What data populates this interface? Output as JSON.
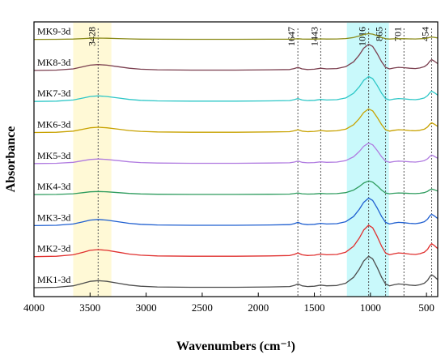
{
  "chart_data": {
    "type": "line",
    "title": "",
    "xlabel": "Wavenumbers (cm⁻¹)",
    "ylabel": "Absorbance",
    "xlim": [
      4000,
      400
    ],
    "x_reversed": true,
    "x_ticks": [
      4000,
      3500,
      3000,
      2500,
      2000,
      1500,
      1000,
      500
    ],
    "y_ticks_shown": false,
    "grid": false,
    "legend": "inline labels at left of each trace",
    "highlight_bands": [
      {
        "from": 3650,
        "to": 3310,
        "color": "#fff9d6"
      },
      {
        "from": 1210,
        "to": 835,
        "color": "#c9f9fb"
      }
    ],
    "peak_markers": [
      {
        "position": 3428,
        "label": "3428"
      },
      {
        "position": 1647,
        "label": "1647"
      },
      {
        "position": 1443,
        "label": "1443"
      },
      {
        "position": 1016,
        "label": "1016"
      },
      {
        "position": 865,
        "label": "865"
      },
      {
        "position": 701,
        "label": "701"
      },
      {
        "position": 454,
        "label": "454"
      }
    ],
    "series": [
      {
        "name": "MK9-3d",
        "color": "#8b8b1a",
        "offset": 8.0,
        "amp": 0.22
      },
      {
        "name": "MK8-3d",
        "color": "#7b3f4f",
        "offset": 7.0,
        "amp": 1.0
      },
      {
        "name": "MK7-3d",
        "color": "#2ec7c7",
        "offset": 6.0,
        "amp": 0.95
      },
      {
        "name": "MK6-3d",
        "color": "#c8a200",
        "offset": 5.0,
        "amp": 0.9
      },
      {
        "name": "MK5-3d",
        "color": "#b07be0",
        "offset": 4.0,
        "amp": 0.78
      },
      {
        "name": "MK4-3d",
        "color": "#2e9c5e",
        "offset": 3.0,
        "amp": 0.52
      },
      {
        "name": "MK3-3d",
        "color": "#1f5fd0",
        "offset": 2.0,
        "amp": 1.05
      },
      {
        "name": "MK2-3d",
        "color": "#e0302f",
        "offset": 1.0,
        "amp": 1.2
      },
      {
        "name": "MK1-3d",
        "color": "#4d4d4d",
        "offset": 0.0,
        "amp": 1.2
      }
    ],
    "spectrum_shape": {
      "x": [
        4000,
        3800,
        3650,
        3560,
        3500,
        3428,
        3350,
        3250,
        3150,
        3050,
        2900,
        2600,
        2200,
        1900,
        1720,
        1680,
        1647,
        1610,
        1560,
        1500,
        1443,
        1390,
        1300,
        1220,
        1150,
        1100,
        1060,
        1016,
        980,
        940,
        900,
        865,
        830,
        790,
        750,
        701,
        650,
        600,
        560,
        520,
        490,
        470,
        454,
        430,
        400
      ],
      "y": [
        0.0,
        0.01,
        0.05,
        0.12,
        0.17,
        0.19,
        0.17,
        0.12,
        0.07,
        0.04,
        0.02,
        0.01,
        0.01,
        0.02,
        0.03,
        0.06,
        0.1,
        0.05,
        0.03,
        0.04,
        0.07,
        0.05,
        0.06,
        0.12,
        0.28,
        0.5,
        0.72,
        0.85,
        0.78,
        0.55,
        0.28,
        0.1,
        0.05,
        0.08,
        0.1,
        0.09,
        0.07,
        0.06,
        0.08,
        0.12,
        0.2,
        0.3,
        0.35,
        0.3,
        0.22
      ]
    }
  }
}
